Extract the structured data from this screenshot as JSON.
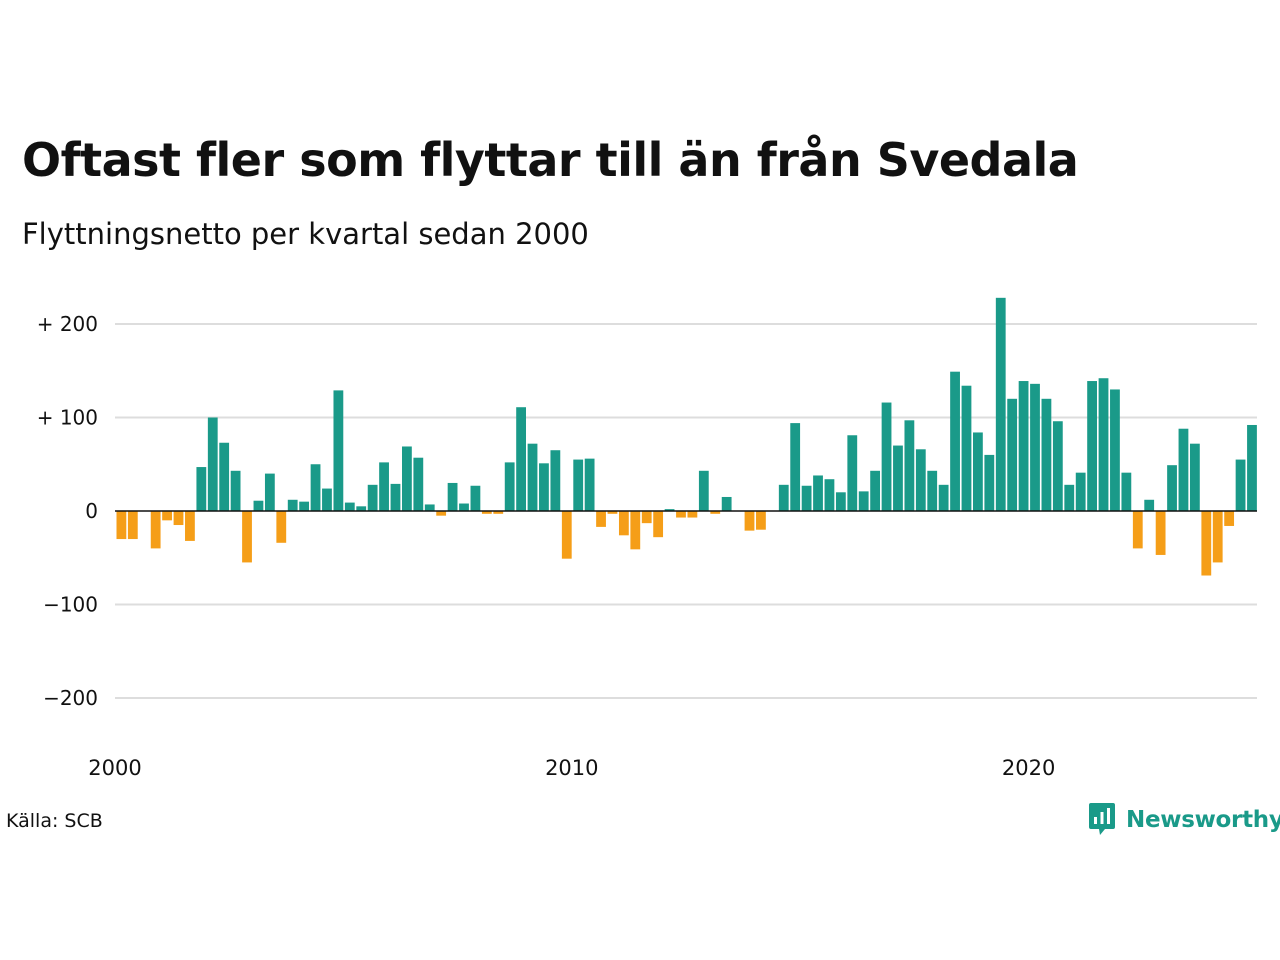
{
  "header": {
    "title": "Oftast fler som flyttar till än från Svedala",
    "subtitle": "Flyttningsnetto per kvartal sedan 2000"
  },
  "footer": {
    "source": "Källa: SCB",
    "brand": "Newsworthy"
  },
  "colors": {
    "positive": "#1a9a89",
    "negative": "#f59e18",
    "grid": "#dddddd",
    "zero_line": "#111111",
    "text": "#111111"
  },
  "icons": {
    "brand": "newsworthy-logo-icon"
  },
  "chart_data": {
    "type": "bar",
    "x_start": "2000 Q1",
    "x_ticks": [
      "2000",
      "2010",
      "2020"
    ],
    "y_ticks": [
      {
        "value": 200,
        "label": "+ 200"
      },
      {
        "value": 100,
        "label": "+ 100"
      },
      {
        "value": 0,
        "label": "0"
      },
      {
        "value": -100,
        "label": "−100"
      },
      {
        "value": -200,
        "label": "−200"
      }
    ],
    "ylim": [
      -240,
      240
    ],
    "grid": true,
    "legend": false,
    "series": [
      {
        "values": [
          -30,
          -30,
          0,
          -40,
          -10,
          -15,
          -32,
          47,
          100,
          73,
          43,
          -55,
          11,
          40,
          -34,
          12,
          10,
          50,
          24,
          129,
          9,
          5,
          28,
          52,
          29,
          69,
          57,
          7,
          -5,
          30,
          8,
          27,
          -3,
          -3,
          52,
          111,
          72,
          51,
          65,
          -51,
          55,
          56,
          -17,
          -3,
          -26,
          -41,
          -13,
          -28,
          2,
          -7,
          -7,
          43,
          -3,
          15,
          0,
          -21,
          -20,
          0,
          28,
          94,
          27,
          38,
          34,
          20,
          81,
          21,
          43,
          116,
          70,
          97,
          66,
          43,
          28,
          149,
          134,
          84,
          60,
          228,
          120,
          139,
          136,
          120,
          96,
          28,
          41,
          139,
          142,
          130,
          41,
          -40,
          12,
          -47,
          49,
          88,
          72,
          -69,
          -55,
          -16,
          55,
          92
        ]
      }
    ]
  }
}
